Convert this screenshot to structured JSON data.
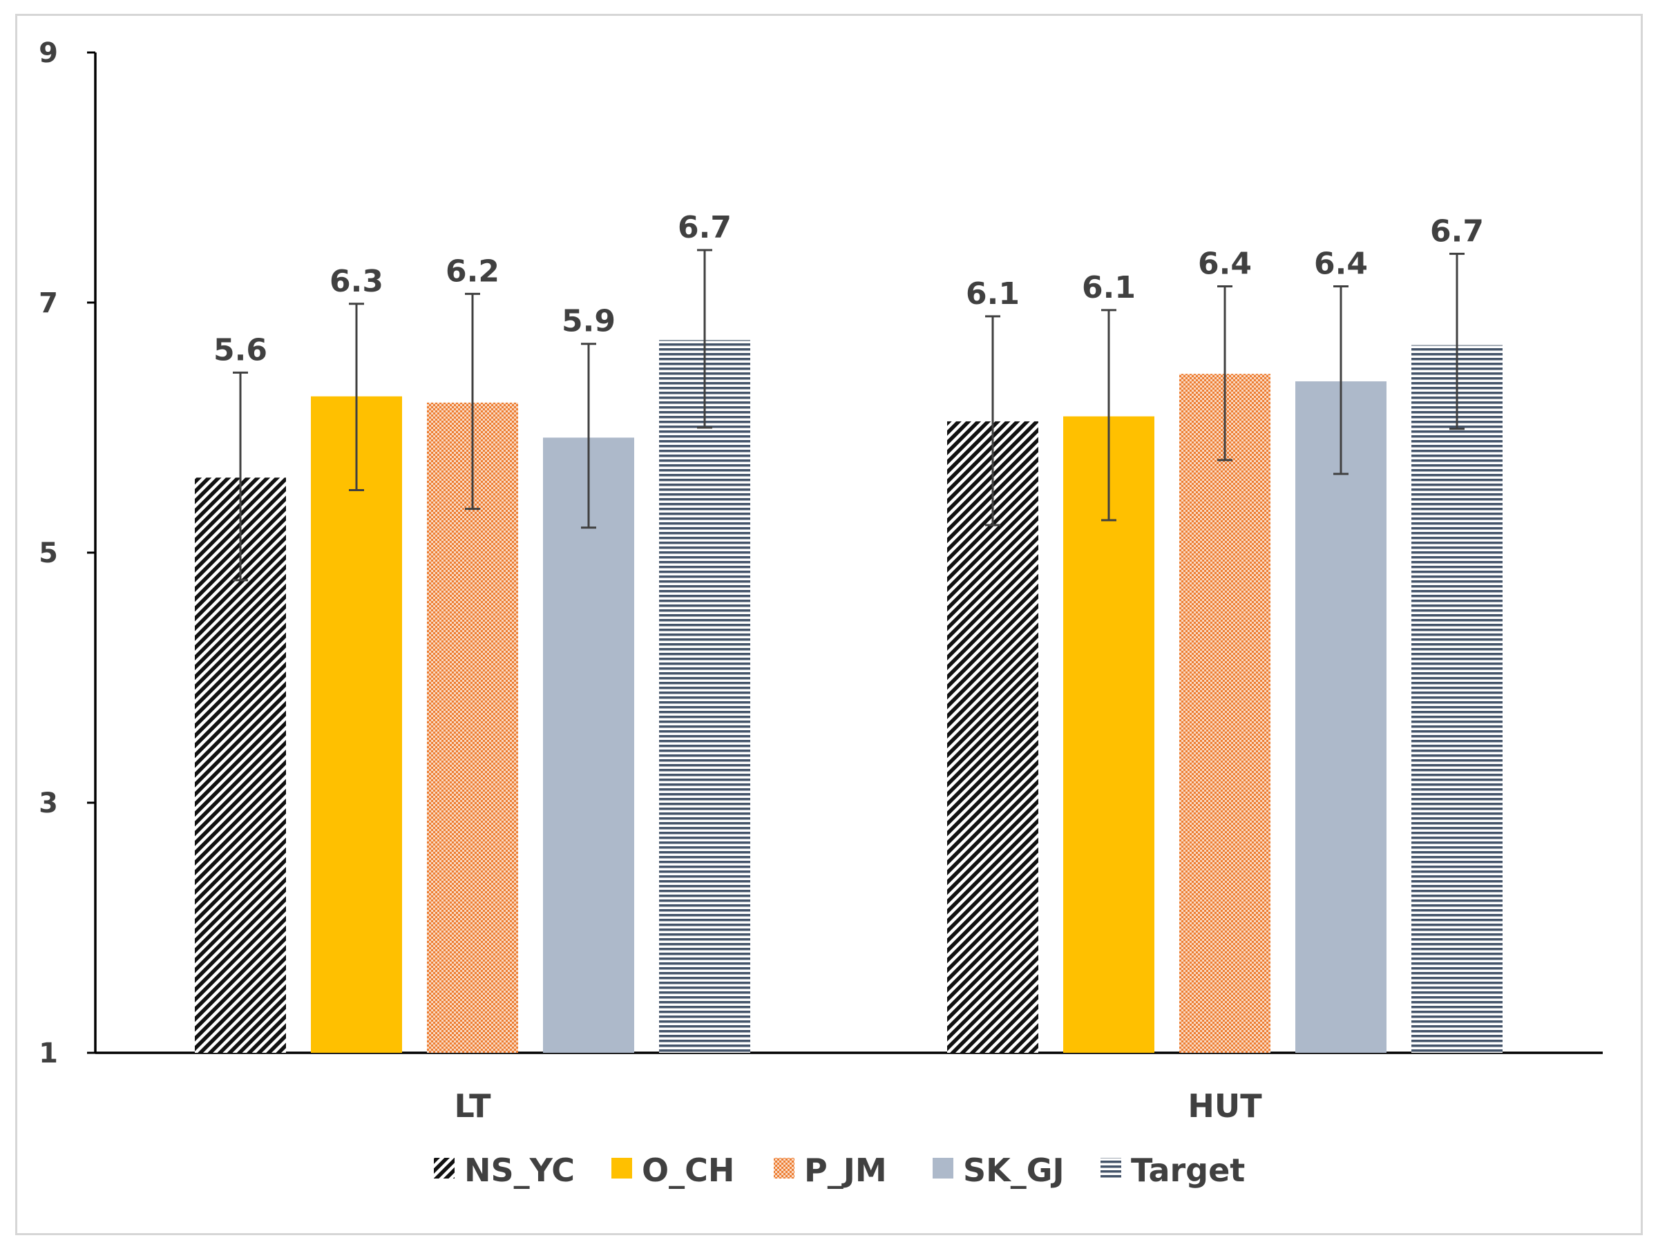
{
  "chart_data": {
    "type": "bar",
    "title": "",
    "xlabel": "",
    "ylabel": "",
    "ylim": [
      1,
      9
    ],
    "yticks": [
      1,
      3,
      5,
      7,
      9
    ],
    "grid": false,
    "legend_position": "bottom",
    "categories": [
      "LT",
      "HUT"
    ],
    "series": [
      {
        "name": "NS_YC",
        "pattern": "diagonal-hatch",
        "color": "#000000",
        "values": [
          5.6,
          6.05
        ],
        "labels": [
          "5.6",
          "6.1"
        ],
        "err_low": [
          4.78,
          5.22
        ],
        "err_high": [
          6.44,
          6.89
        ]
      },
      {
        "name": "O_CH",
        "pattern": "solid",
        "color": "#FFC000",
        "values": [
          6.25,
          6.09
        ],
        "labels": [
          "6.3",
          "6.1"
        ],
        "err_low": [
          5.5,
          5.26
        ],
        "err_high": [
          6.99,
          6.94
        ]
      },
      {
        "name": "P_JM",
        "pattern": "dotted",
        "color": "#ED7D31",
        "values": [
          6.2,
          6.43
        ],
        "labels": [
          "6.2",
          "6.4"
        ],
        "err_low": [
          5.35,
          5.74
        ],
        "err_high": [
          7.07,
          7.13
        ]
      },
      {
        "name": "SK_GJ",
        "pattern": "solid",
        "color": "#ADB9CA",
        "values": [
          5.92,
          6.37
        ],
        "labels": [
          "5.9",
          "6.4"
        ],
        "err_low": [
          5.2,
          5.63
        ],
        "err_high": [
          6.67,
          7.13
        ]
      },
      {
        "name": "Target",
        "pattern": "horizontal-lines",
        "color": "#44546A",
        "values": [
          6.7,
          6.66
        ],
        "labels": [
          "6.7",
          "6.7"
        ],
        "err_low": [
          6.0,
          5.99
        ],
        "err_high": [
          7.42,
          7.39
        ]
      }
    ]
  }
}
